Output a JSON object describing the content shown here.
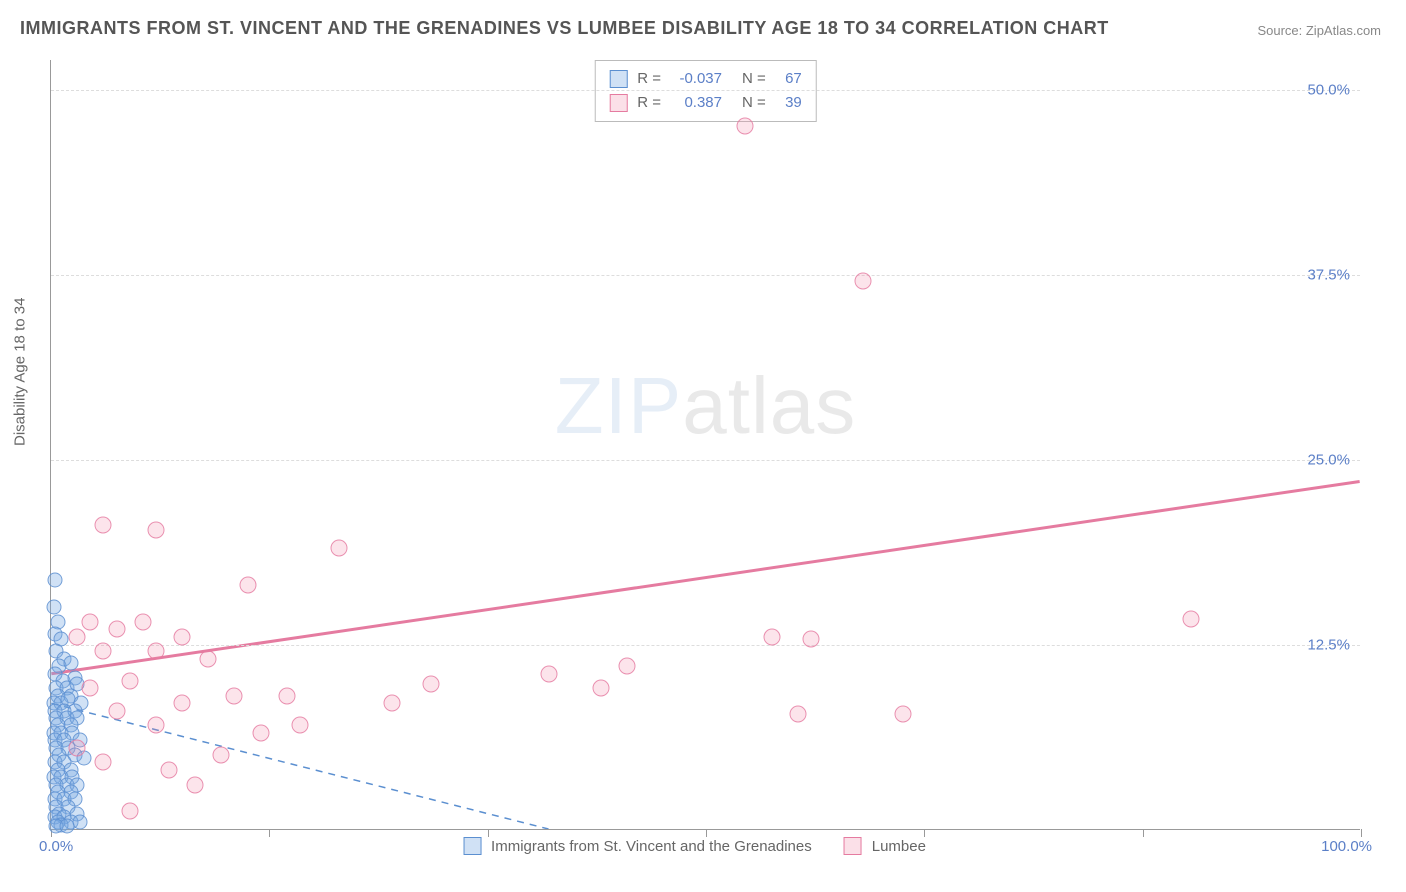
{
  "title": "IMMIGRANTS FROM ST. VINCENT AND THE GRENADINES VS LUMBEE DISABILITY AGE 18 TO 34 CORRELATION CHART",
  "source": "Source: ZipAtlas.com",
  "watermark_zip": "ZIP",
  "watermark_atlas": "atlas",
  "chart": {
    "type": "scatter",
    "xlim": [
      0,
      100
    ],
    "ylim": [
      0,
      52
    ],
    "y_ticks": [
      12.5,
      25.0,
      37.5,
      50.0
    ],
    "y_tick_labels": [
      "12.5%",
      "25.0%",
      "37.5%",
      "50.0%"
    ],
    "x_ticks": [
      0,
      16.67,
      33.33,
      50,
      66.67,
      83.33,
      100
    ],
    "x_min_label": "0.0%",
    "x_max_label": "100.0%",
    "ylabel": "Disability Age 18 to 34",
    "grid_color": "#dddddd",
    "background_color": "#ffffff",
    "marker_size_blue": 15,
    "marker_size_pink": 17,
    "colors": {
      "blue_fill": "rgba(120,170,225,0.35)",
      "blue_stroke": "#5b8fd0",
      "pink_fill": "rgba(240,130,165,0.22)",
      "pink_stroke": "#e57ba0",
      "axis_text": "#5b7fc7",
      "text": "#666666"
    },
    "stats": [
      {
        "swatch": "blue",
        "r": "-0.037",
        "n": "67"
      },
      {
        "swatch": "pink",
        "r": "0.387",
        "n": "39"
      }
    ],
    "series": [
      {
        "name": "Immigrants from St. Vincent and the Grenadines",
        "color": "blue",
        "trend": {
          "x1": 0,
          "y1": 8.5,
          "x2": 38,
          "y2": 0,
          "style": "dashed",
          "width": 1.5
        },
        "points": [
          [
            0.3,
            16.8
          ],
          [
            0.2,
            15.0
          ],
          [
            0.5,
            14.0
          ],
          [
            0.3,
            13.2
          ],
          [
            0.8,
            12.8
          ],
          [
            0.4,
            12.0
          ],
          [
            1.0,
            11.5
          ],
          [
            0.6,
            11.0
          ],
          [
            1.5,
            11.2
          ],
          [
            0.3,
            10.5
          ],
          [
            0.9,
            10.0
          ],
          [
            1.8,
            10.2
          ],
          [
            0.4,
            9.5
          ],
          [
            1.2,
            9.5
          ],
          [
            2.0,
            9.8
          ],
          [
            0.5,
            9.0
          ],
          [
            1.5,
            9.0
          ],
          [
            0.2,
            8.5
          ],
          [
            0.8,
            8.5
          ],
          [
            1.3,
            8.8
          ],
          [
            2.3,
            8.5
          ],
          [
            0.3,
            8.0
          ],
          [
            1.0,
            8.0
          ],
          [
            1.8,
            8.0
          ],
          [
            0.4,
            7.5
          ],
          [
            1.2,
            7.5
          ],
          [
            2.0,
            7.5
          ],
          [
            0.5,
            7.0
          ],
          [
            1.5,
            7.0
          ],
          [
            0.2,
            6.5
          ],
          [
            0.8,
            6.5
          ],
          [
            1.6,
            6.5
          ],
          [
            0.3,
            6.0
          ],
          [
            1.0,
            6.0
          ],
          [
            2.2,
            6.0
          ],
          [
            0.4,
            5.5
          ],
          [
            1.3,
            5.5
          ],
          [
            0.6,
            5.0
          ],
          [
            1.8,
            5.0
          ],
          [
            0.3,
            4.5
          ],
          [
            1.0,
            4.5
          ],
          [
            2.5,
            4.8
          ],
          [
            0.5,
            4.0
          ],
          [
            1.5,
            4.0
          ],
          [
            0.2,
            3.5
          ],
          [
            0.8,
            3.5
          ],
          [
            1.6,
            3.5
          ],
          [
            0.4,
            3.0
          ],
          [
            1.2,
            3.0
          ],
          [
            2.0,
            3.0
          ],
          [
            0.5,
            2.5
          ],
          [
            1.5,
            2.5
          ],
          [
            0.3,
            2.0
          ],
          [
            1.0,
            2.0
          ],
          [
            1.8,
            2.0
          ],
          [
            0.4,
            1.5
          ],
          [
            1.3,
            1.5
          ],
          [
            0.6,
            1.0
          ],
          [
            2.0,
            1.0
          ],
          [
            0.3,
            0.8
          ],
          [
            1.0,
            0.8
          ],
          [
            0.5,
            0.5
          ],
          [
            1.5,
            0.5
          ],
          [
            0.8,
            0.3
          ],
          [
            2.2,
            0.5
          ],
          [
            0.4,
            0.2
          ],
          [
            1.2,
            0.2
          ]
        ]
      },
      {
        "name": "Lumbee",
        "color": "pink",
        "trend": {
          "x1": 0,
          "y1": 10.5,
          "x2": 100,
          "y2": 23.5,
          "style": "solid",
          "width": 3
        },
        "points": [
          [
            53,
            47.5
          ],
          [
            62,
            37.0
          ],
          [
            4,
            20.5
          ],
          [
            8,
            20.2
          ],
          [
            22,
            19.0
          ],
          [
            15,
            16.5
          ],
          [
            87,
            14.2
          ],
          [
            3,
            14.0
          ],
          [
            7,
            14.0
          ],
          [
            55,
            13.0
          ],
          [
            5,
            13.5
          ],
          [
            2,
            13.0
          ],
          [
            10,
            13.0
          ],
          [
            58,
            12.8
          ],
          [
            4,
            12.0
          ],
          [
            8,
            12.0
          ],
          [
            12,
            11.5
          ],
          [
            44,
            11.0
          ],
          [
            38,
            10.5
          ],
          [
            29,
            9.8
          ],
          [
            6,
            10.0
          ],
          [
            3,
            9.5
          ],
          [
            42,
            9.5
          ],
          [
            14,
            9.0
          ],
          [
            18,
            9.0
          ],
          [
            10,
            8.5
          ],
          [
            26,
            8.5
          ],
          [
            5,
            8.0
          ],
          [
            57,
            7.8
          ],
          [
            65,
            7.8
          ],
          [
            8,
            7.0
          ],
          [
            19,
            7.0
          ],
          [
            16,
            6.5
          ],
          [
            13,
            5.0
          ],
          [
            4,
            4.5
          ],
          [
            11,
            3.0
          ],
          [
            6,
            1.2
          ],
          [
            2,
            5.5
          ],
          [
            9,
            4.0
          ]
        ]
      }
    ],
    "bottom_legend": [
      {
        "swatch": "blue",
        "label": "Immigrants from St. Vincent and the Grenadines"
      },
      {
        "swatch": "pink",
        "label": "Lumbee"
      }
    ]
  }
}
